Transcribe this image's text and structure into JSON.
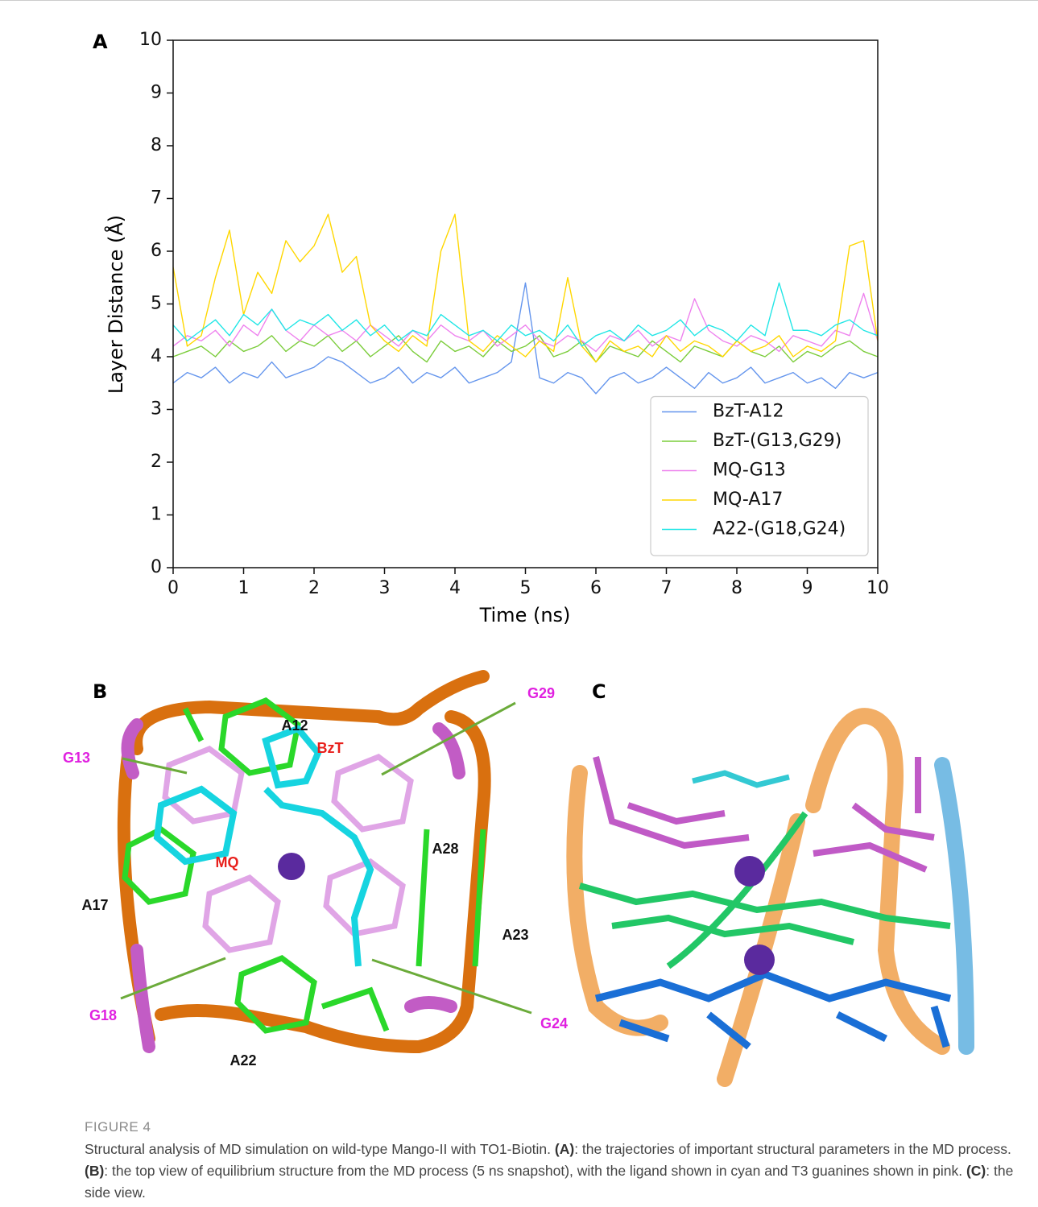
{
  "chart_data": {
    "type": "line",
    "panel_label": "A",
    "xlabel": "Time (ns)",
    "ylabel": "Layer Distance (Å)",
    "xlim": [
      0,
      10
    ],
    "ylim": [
      0,
      10
    ],
    "xticks": [
      0,
      1,
      2,
      3,
      4,
      5,
      6,
      7,
      8,
      9,
      10
    ],
    "yticks": [
      0,
      1,
      2,
      3,
      4,
      5,
      6,
      7,
      8,
      9,
      10
    ],
    "legend": "lower right",
    "x": [
      0,
      0.2,
      0.4,
      0.6,
      0.8,
      1,
      1.2,
      1.4,
      1.6,
      1.8,
      2,
      2.2,
      2.4,
      2.6,
      2.8,
      3,
      3.2,
      3.4,
      3.6,
      3.8,
      4,
      4.2,
      4.4,
      4.6,
      4.8,
      5,
      5.2,
      5.4,
      5.6,
      5.8,
      6,
      6.2,
      6.4,
      6.6,
      6.8,
      7,
      7.2,
      7.4,
      7.6,
      7.8,
      8,
      8.2,
      8.4,
      8.6,
      8.8,
      9,
      9.2,
      9.4,
      9.6,
      9.8,
      10
    ],
    "series": [
      {
        "name": "BzT-A12",
        "color": "#6495ed",
        "values": [
          3.5,
          3.7,
          3.6,
          3.8,
          3.5,
          3.7,
          3.6,
          3.9,
          3.6,
          3.7,
          3.8,
          4.0,
          3.9,
          3.7,
          3.5,
          3.6,
          3.8,
          3.5,
          3.7,
          3.6,
          3.8,
          3.5,
          3.6,
          3.7,
          3.9,
          5.4,
          3.6,
          3.5,
          3.7,
          3.6,
          3.3,
          3.6,
          3.7,
          3.5,
          3.6,
          3.8,
          3.6,
          3.4,
          3.7,
          3.5,
          3.6,
          3.8,
          3.5,
          3.6,
          3.7,
          3.5,
          3.6,
          3.4,
          3.7,
          3.6,
          3.7
        ]
      },
      {
        "name": "BzT-(G13,G29)",
        "color": "#7ccd3c",
        "values": [
          4.0,
          4.1,
          4.2,
          4.0,
          4.3,
          4.1,
          4.2,
          4.4,
          4.1,
          4.3,
          4.2,
          4.4,
          4.1,
          4.3,
          4.0,
          4.2,
          4.4,
          4.1,
          3.9,
          4.3,
          4.1,
          4.2,
          4.0,
          4.3,
          4.1,
          4.2,
          4.4,
          4.0,
          4.1,
          4.3,
          3.9,
          4.2,
          4.1,
          4.0,
          4.3,
          4.1,
          3.9,
          4.2,
          4.1,
          4.0,
          4.3,
          4.1,
          4.0,
          4.2,
          3.9,
          4.1,
          4.0,
          4.2,
          4.3,
          4.1,
          4.0
        ]
      },
      {
        "name": "MQ-G13",
        "color": "#ee82ee",
        "values": [
          4.2,
          4.4,
          4.3,
          4.5,
          4.2,
          4.6,
          4.4,
          4.9,
          4.5,
          4.3,
          4.6,
          4.4,
          4.5,
          4.3,
          4.6,
          4.4,
          4.2,
          4.5,
          4.3,
          4.6,
          4.4,
          4.3,
          4.5,
          4.2,
          4.4,
          4.6,
          4.3,
          4.2,
          4.4,
          4.3,
          4.1,
          4.4,
          4.3,
          4.5,
          4.2,
          4.4,
          4.3,
          5.1,
          4.5,
          4.3,
          4.2,
          4.4,
          4.3,
          4.1,
          4.4,
          4.3,
          4.2,
          4.5,
          4.4,
          5.2,
          4.3
        ]
      },
      {
        "name": "MQ-A17",
        "color": "#ffd700",
        "values": [
          5.7,
          4.2,
          4.4,
          5.5,
          6.4,
          4.8,
          5.6,
          5.2,
          6.2,
          5.8,
          6.1,
          6.7,
          5.6,
          5.9,
          4.6,
          4.3,
          4.1,
          4.4,
          4.2,
          6.0,
          6.7,
          4.3,
          4.1,
          4.4,
          4.2,
          4.0,
          4.3,
          4.1,
          5.5,
          4.2,
          3.9,
          4.3,
          4.1,
          4.2,
          4.0,
          4.4,
          4.1,
          4.3,
          4.2,
          4.0,
          4.3,
          4.1,
          4.2,
          4.4,
          4.0,
          4.2,
          4.1,
          4.3,
          6.1,
          6.2,
          4.3
        ]
      },
      {
        "name": "A22-(G18,G24)",
        "color": "#22e6e6",
        "values": [
          4.6,
          4.3,
          4.5,
          4.7,
          4.4,
          4.8,
          4.6,
          4.9,
          4.5,
          4.7,
          4.6,
          4.8,
          4.5,
          4.7,
          4.4,
          4.6,
          4.3,
          4.5,
          4.4,
          4.8,
          4.6,
          4.4,
          4.5,
          4.3,
          4.6,
          4.4,
          4.5,
          4.3,
          4.6,
          4.2,
          4.4,
          4.5,
          4.3,
          4.6,
          4.4,
          4.5,
          4.7,
          4.4,
          4.6,
          4.5,
          4.3,
          4.6,
          4.4,
          5.4,
          4.5,
          4.5,
          4.4,
          4.6,
          4.7,
          4.5,
          4.4
        ]
      }
    ]
  },
  "panel_b": {
    "panel_label": "B",
    "labels": [
      {
        "text": "A12",
        "color": "#111111"
      },
      {
        "text": "BzT",
        "color": "#e8201c"
      },
      {
        "text": "G29",
        "color": "#e020e0"
      },
      {
        "text": "G13",
        "color": "#e020e0"
      },
      {
        "text": "MQ",
        "color": "#e8201c"
      },
      {
        "text": "A28",
        "color": "#111111"
      },
      {
        "text": "A17",
        "color": "#111111"
      },
      {
        "text": "A23",
        "color": "#111111"
      },
      {
        "text": "G18",
        "color": "#e020e0"
      },
      {
        "text": "G24",
        "color": "#e020e0"
      },
      {
        "text": "A22",
        "color": "#111111"
      }
    ]
  },
  "panel_c": {
    "panel_label": "C"
  },
  "caption": {
    "figure_label": "FIGURE 4",
    "parts": [
      {
        "text": "Structural analysis of MD simulation on wild-type Mango-II with TO1-Biotin. ",
        "bold": false
      },
      {
        "text": "(A)",
        "bold": true
      },
      {
        "text": ": the trajectories of important structural parameters in the MD process. ",
        "bold": false
      },
      {
        "text": "(B)",
        "bold": true
      },
      {
        "text": ": the top view of equilibrium structure from the MD process (5 ns snapshot), with the ligand shown in cyan and T3 guanines shown in pink. ",
        "bold": false
      },
      {
        "text": "(C)",
        "bold": true
      },
      {
        "text": ": the side view.",
        "bold": false
      }
    ]
  }
}
